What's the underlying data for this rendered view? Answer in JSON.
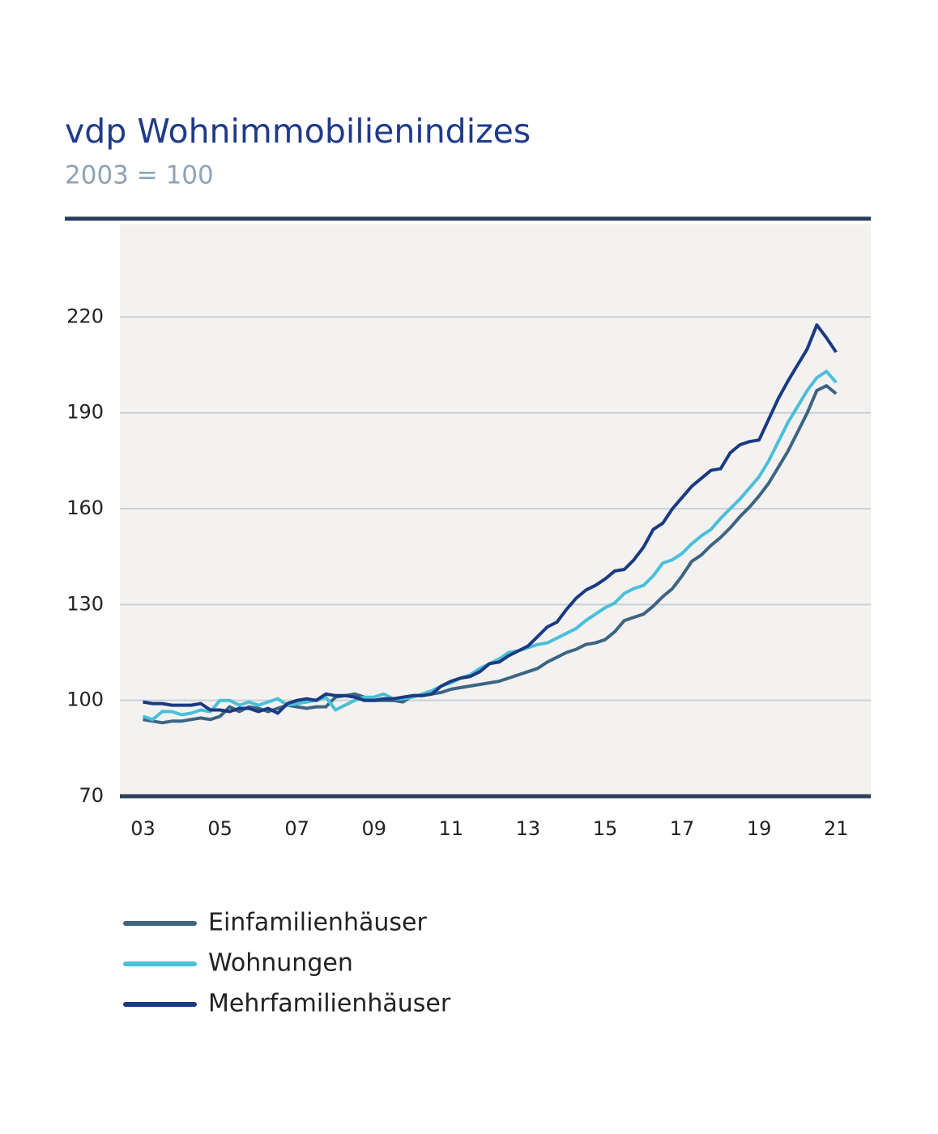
{
  "chart_data": {
    "type": "line",
    "title": "vdp Wohnimmobilienindizes",
    "subtitle": "2003 = 100",
    "x": [
      2003,
      2003.25,
      2003.5,
      2003.75,
      2004,
      2004.25,
      2004.5,
      2004.75,
      2005,
      2005.25,
      2005.5,
      2005.75,
      2006,
      2006.25,
      2006.5,
      2006.75,
      2007,
      2007.25,
      2007.5,
      2007.75,
      2008,
      2008.25,
      2008.5,
      2008.75,
      2009,
      2009.25,
      2009.5,
      2009.75,
      2010,
      2010.25,
      2010.5,
      2010.75,
      2011,
      2011.25,
      2011.5,
      2011.75,
      2012,
      2012.25,
      2012.5,
      2012.75,
      2013,
      2013.25,
      2013.5,
      2013.75,
      2014,
      2014.25,
      2014.5,
      2014.75,
      2015,
      2015.25,
      2015.5,
      2015.75,
      2016,
      2016.25,
      2016.5,
      2016.75,
      2017,
      2017.25,
      2017.5,
      2017.75,
      2018,
      2018.25,
      2018.5,
      2018.75,
      2019,
      2019.25,
      2019.5,
      2019.75,
      2020,
      2020.25,
      2020.5,
      2020.75,
      2021
    ],
    "series": [
      {
        "name": "Einfamilienhäuser",
        "color": "#3d6582",
        "values": [
          94,
          93.5,
          93,
          93.5,
          93.5,
          94,
          94.5,
          94,
          95,
          98,
          96.5,
          98,
          97.5,
          96.5,
          97.5,
          98.5,
          98,
          97.5,
          98,
          98,
          101,
          101.5,
          102,
          101,
          100,
          100,
          100,
          99.5,
          101.5,
          101.5,
          102,
          102.5,
          103.5,
          104,
          104.5,
          105,
          105.5,
          106,
          107,
          108,
          109,
          110,
          112,
          113.5,
          115,
          116,
          117.5,
          118,
          119,
          121.5,
          125,
          126,
          127,
          129.5,
          132.5,
          135,
          139,
          143.5,
          145.5,
          148.5,
          151,
          154,
          157.5,
          160.5,
          164,
          168,
          173,
          178,
          184,
          190,
          197,
          198.5,
          196
        ]
      },
      {
        "name": "Wohnungen",
        "color": "#4bbfd9",
        "values": [
          95,
          94,
          96.5,
          96.5,
          95.5,
          96,
          97,
          96.5,
          100,
          100,
          98.5,
          99.5,
          98.5,
          99.5,
          100.5,
          98.5,
          99,
          99.5,
          100,
          101,
          97,
          98.5,
          100,
          101,
          101,
          102,
          100.5,
          100.5,
          101,
          102,
          103,
          104.5,
          105.5,
          107,
          108,
          110,
          111.5,
          113,
          115,
          115.5,
          116.5,
          117.5,
          118,
          119.5,
          121,
          122.5,
          125,
          127,
          129,
          130.5,
          133.5,
          135,
          136,
          139,
          143,
          144,
          146,
          149,
          151.5,
          153.5,
          157,
          160,
          163,
          166.5,
          170,
          175,
          181,
          187,
          192,
          197,
          201,
          203,
          199.5
        ]
      },
      {
        "name": "Mehrfamilienhäuser",
        "color": "#1a3a82",
        "values": [
          99.5,
          99,
          99,
          98.5,
          98.5,
          98.5,
          99,
          97,
          97,
          96.5,
          97.5,
          97.5,
          96.5,
          97.5,
          96,
          99,
          100,
          100.5,
          100,
          102,
          101.5,
          101.5,
          101,
          100,
          100,
          100.5,
          100.5,
          101,
          101.5,
          101.5,
          102,
          104.5,
          106,
          107,
          107.5,
          109,
          111.5,
          112,
          114,
          115.5,
          117,
          120,
          123,
          124.5,
          128.5,
          132,
          134.5,
          136,
          138,
          140.5,
          141,
          144,
          148,
          153.5,
          155.5,
          160,
          163.5,
          167,
          169.5,
          172,
          172.5,
          177.5,
          180,
          181,
          181.5,
          188,
          194.5,
          200,
          205,
          210,
          217.5,
          213.5,
          209
        ]
      }
    ],
    "xlim": [
      2002.4,
      2021.9
    ],
    "xticks": [
      {
        "value": 2003,
        "label": "03"
      },
      {
        "value": 2005,
        "label": "05"
      },
      {
        "value": 2007,
        "label": "07"
      },
      {
        "value": 2009,
        "label": "09"
      },
      {
        "value": 2011,
        "label": "11"
      },
      {
        "value": 2013,
        "label": "13"
      },
      {
        "value": 2015,
        "label": "15"
      },
      {
        "value": 2017,
        "label": "17"
      },
      {
        "value": 2019,
        "label": "19"
      },
      {
        "value": 2021,
        "label": "21"
      }
    ],
    "ylim": [
      70,
      249
    ],
    "yticks": [
      70,
      100,
      130,
      160,
      190,
      220
    ],
    "grid": true
  }
}
